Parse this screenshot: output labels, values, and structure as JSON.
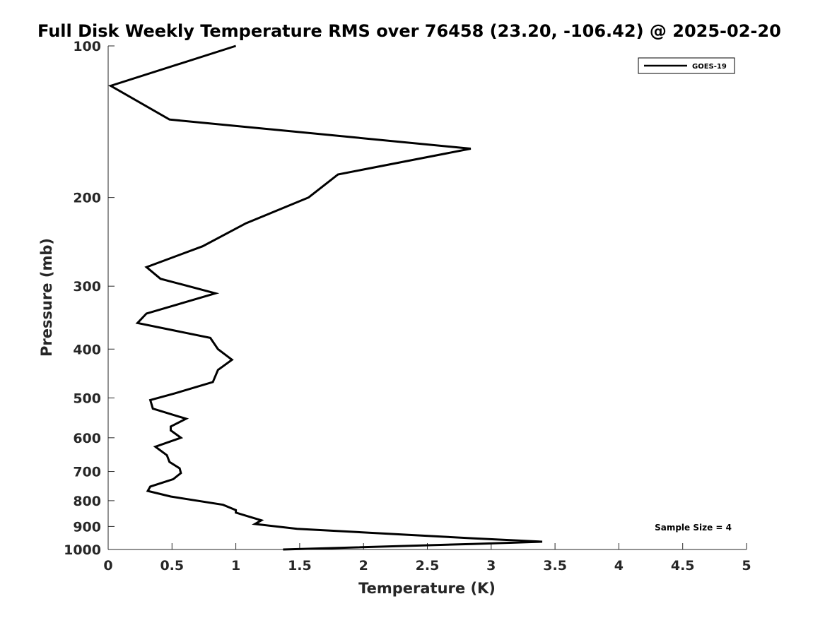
{
  "chart_data": {
    "type": "line",
    "title": "Full Disk Weekly Temperature RMS over 76458 (23.20, -106.42) @ 2025-02-20",
    "xlabel": "Temperature (K)",
    "ylabel": "Pressure (mb)",
    "xlim": [
      0,
      5
    ],
    "ylim": [
      100,
      1000
    ],
    "y_scale": "log",
    "y_reversed": true,
    "grid": false,
    "legend_position": "top-right",
    "x_ticks": [
      0,
      0.5,
      1,
      1.5,
      2,
      2.5,
      3,
      3.5,
      4,
      4.5,
      5
    ],
    "x_tick_labels": [
      "0",
      "0.5",
      "1",
      "1.5",
      "2",
      "2.5",
      "3",
      "3.5",
      "4",
      "4.5",
      "5"
    ],
    "y_ticks": [
      100,
      200,
      300,
      400,
      500,
      600,
      700,
      800,
      900,
      1000
    ],
    "y_tick_labels": [
      "100",
      "200",
      "300",
      "400",
      "500",
      "600",
      "700",
      "800",
      "900",
      "1000"
    ],
    "annotation": "Sample Size = 4",
    "series": [
      {
        "name": "GOES-19",
        "color": "#000000",
        "points": [
          [
            1.0,
            100
          ],
          [
            0.02,
            120
          ],
          [
            0.48,
            140
          ],
          [
            2.84,
            160
          ],
          [
            1.8,
            180
          ],
          [
            1.57,
            200
          ],
          [
            1.08,
            225
          ],
          [
            0.74,
            250
          ],
          [
            0.3,
            275
          ],
          [
            0.41,
            290
          ],
          [
            0.84,
            310
          ],
          [
            0.3,
            340
          ],
          [
            0.23,
            355
          ],
          [
            0.8,
            380
          ],
          [
            0.86,
            400
          ],
          [
            0.97,
            420
          ],
          [
            0.86,
            440
          ],
          [
            0.82,
            465
          ],
          [
            0.52,
            490
          ],
          [
            0.33,
            505
          ],
          [
            0.35,
            525
          ],
          [
            0.61,
            550
          ],
          [
            0.49,
            570
          ],
          [
            0.49,
            580
          ],
          [
            0.57,
            600
          ],
          [
            0.37,
            625
          ],
          [
            0.46,
            650
          ],
          [
            0.48,
            670
          ],
          [
            0.56,
            690
          ],
          [
            0.57,
            705
          ],
          [
            0.51,
            725
          ],
          [
            0.33,
            750
          ],
          [
            0.31,
            765
          ],
          [
            0.49,
            785
          ],
          [
            0.9,
            815
          ],
          [
            1.0,
            835
          ],
          [
            1.0,
            845
          ],
          [
            1.1,
            860
          ],
          [
            1.2,
            875
          ],
          [
            1.15,
            890
          ],
          [
            1.48,
            910
          ],
          [
            2.35,
            935
          ],
          [
            2.85,
            950
          ],
          [
            3.4,
            965
          ],
          [
            2.85,
            975
          ],
          [
            1.37,
            1000
          ]
        ]
      }
    ]
  }
}
